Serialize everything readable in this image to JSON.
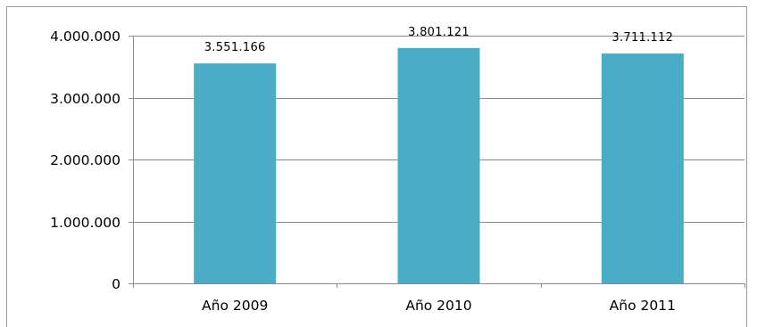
{
  "chart_data": {
    "type": "bar",
    "categories": [
      "Año 2009",
      "Año 2010",
      "Año 2011"
    ],
    "values": [
      3551166,
      3801121,
      3711112
    ],
    "data_labels": [
      "3.551.166",
      "3.801.121",
      "3.711.112"
    ],
    "y_ticks": [
      {
        "value": 0,
        "label": "0"
      },
      {
        "value": 1000000,
        "label": "1.000.000"
      },
      {
        "value": 2000000,
        "label": "2.000.000"
      },
      {
        "value": 3000000,
        "label": "3.000.000"
      },
      {
        "value": 4000000,
        "label": "4.000.000"
      }
    ],
    "ylim": [
      0,
      4000000
    ],
    "grid": true,
    "legend": "none",
    "bar_color": "#4bacc6",
    "grid_color": "#8c8c8c"
  }
}
